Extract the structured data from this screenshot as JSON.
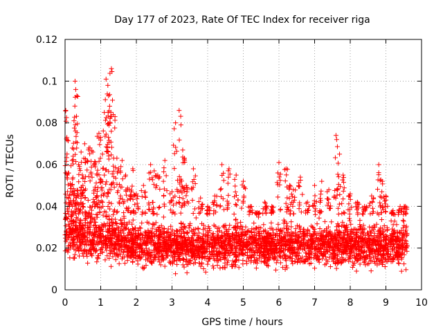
{
  "chart_data": {
    "type": "scatter",
    "title": "Day 177 of 2023, Rate Of TEC Index for receiver riga",
    "xlabel": "GPS time / hours",
    "ylabel": "ROTI / TECUs",
    "xlim": [
      0,
      10
    ],
    "ylim": [
      0,
      0.12
    ],
    "xticks": [
      0,
      1,
      2,
      3,
      4,
      5,
      6,
      7,
      8,
      9,
      10
    ],
    "xtick_labels": [
      "0",
      "1",
      "2",
      "3",
      "4",
      "5",
      "6",
      "7",
      "8",
      "9",
      "10"
    ],
    "yticks": [
      0,
      0.02,
      0.04,
      0.06,
      0.08,
      0.1,
      0.12
    ],
    "ytick_labels": [
      "0",
      "0.02",
      "0.04",
      "0.06",
      "0.08",
      "0.1",
      "0.12"
    ],
    "grid": true,
    "marker": "plus",
    "color": "#ff0000",
    "series": [
      {
        "name": "ROTI",
        "x": [
          0.02,
          0.05,
          0.1,
          0.15,
          0.2,
          0.25,
          0.28,
          0.3,
          0.33,
          0.38,
          0.45,
          0.5,
          0.55,
          0.62,
          0.7,
          0.78,
          0.85,
          0.9,
          0.95,
          1.0,
          1.05,
          1.1,
          1.15,
          1.2,
          1.22,
          1.25,
          1.3,
          1.35,
          1.4,
          1.5,
          1.6,
          1.7,
          1.8,
          1.9,
          2.0,
          2.2,
          2.4,
          2.5,
          2.6,
          2.8,
          3.0,
          3.1,
          3.2,
          3.25,
          3.3,
          3.4,
          3.6,
          3.8,
          4.0,
          4.2,
          4.4,
          4.6,
          4.8,
          5.0,
          5.2,
          5.4,
          5.6,
          5.8,
          6.0,
          6.2,
          6.3,
          6.4,
          6.6,
          6.8,
          7.0,
          7.2,
          7.4,
          7.6,
          7.7,
          7.8,
          8.0,
          8.2,
          8.4,
          8.6,
          8.8,
          8.9,
          9.0,
          9.2,
          9.4,
          9.55
        ],
        "y": [
          0.086,
          0.073,
          0.056,
          0.05,
          0.062,
          0.081,
          0.1,
          0.096,
          0.093,
          0.06,
          0.066,
          0.05,
          0.07,
          0.062,
          0.068,
          0.066,
          0.061,
          0.055,
          0.075,
          0.073,
          0.065,
          0.085,
          0.101,
          0.098,
          0.093,
          0.088,
          0.106,
          0.084,
          0.083,
          0.058,
          0.062,
          0.055,
          0.048,
          0.058,
          0.046,
          0.05,
          0.06,
          0.057,
          0.055,
          0.062,
          0.047,
          0.08,
          0.086,
          0.079,
          0.067,
          0.05,
          0.058,
          0.044,
          0.04,
          0.045,
          0.06,
          0.058,
          0.055,
          0.052,
          0.04,
          0.037,
          0.042,
          0.04,
          0.061,
          0.058,
          0.05,
          0.048,
          0.054,
          0.042,
          0.05,
          0.052,
          0.048,
          0.074,
          0.065,
          0.055,
          0.046,
          0.042,
          0.04,
          0.045,
          0.06,
          0.052,
          0.045,
          0.038,
          0.04,
          0.04
        ]
      }
    ],
    "dense_band": {
      "x_start": 0.0,
      "x_end": 9.6,
      "y_low": 0.007,
      "y_high": 0.036,
      "note": "dense cloud of points, most values between 0.01 and 0.03"
    }
  }
}
